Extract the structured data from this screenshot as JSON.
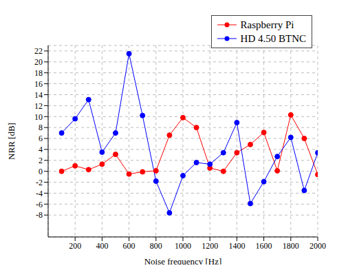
{
  "chart_data": {
    "type": "line",
    "x_label": "Noise frequency [Hz]",
    "y_label": "NRR [dB]",
    "x": [
      100,
      200,
      300,
      400,
      500,
      600,
      700,
      800,
      900,
      1000,
      1100,
      1200,
      1300,
      1400,
      1500,
      1600,
      1700,
      1800,
      1900,
      2000
    ],
    "series": [
      {
        "name": "Raspberry Pi",
        "color": "#ff0000",
        "marker": "circle",
        "values": [
          0,
          1,
          0.3,
          1.3,
          3.1,
          -0.5,
          -0.1,
          0.1,
          6.6,
          9.8,
          8,
          0.6,
          0,
          3.4,
          4.9,
          7.1,
          0.1,
          10.3,
          6,
          -0.6
        ]
      },
      {
        "name": "HD 4.50 BTNC",
        "color": "#0000ff",
        "marker": "circle",
        "values": [
          7,
          9.6,
          13.1,
          3.5,
          7,
          21.5,
          10.2,
          -1.8,
          -7.6,
          -0.8,
          1.6,
          1.3,
          3.4,
          8.9,
          -5.9,
          -1.9,
          2.7,
          6.2,
          -3.5,
          3.4
        ]
      }
    ],
    "xlim": [
      0,
      2000
    ],
    "xticks": [
      200,
      400,
      600,
      800,
      1000,
      1200,
      1400,
      1600,
      1800,
      2000
    ],
    "ylim": [
      -12,
      23
    ],
    "yticks": [
      -8,
      -6,
      -4,
      -2,
      0,
      2,
      4,
      6,
      8,
      10,
      12,
      14,
      16,
      18,
      20,
      22
    ],
    "grid": true,
    "legend": "upper right"
  }
}
